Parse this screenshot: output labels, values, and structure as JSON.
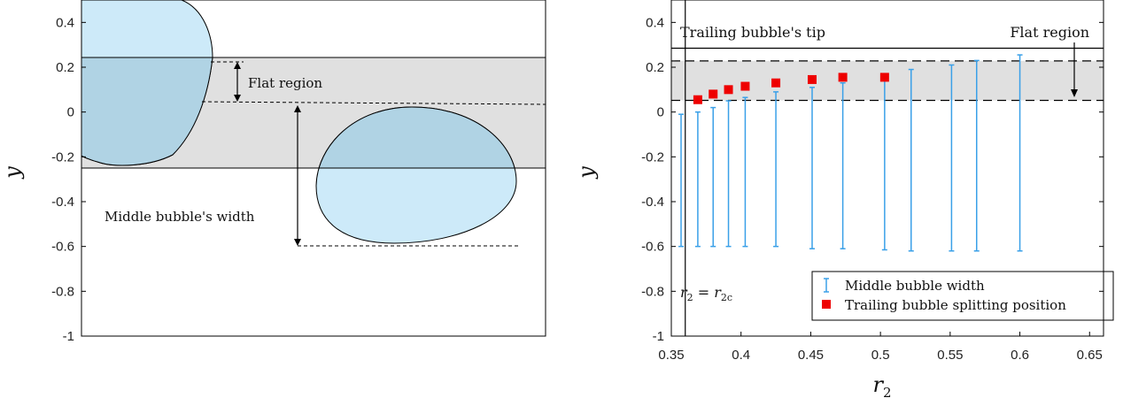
{
  "chart_data": [
    {
      "type": "diagram",
      "ylabel": "y",
      "ylim": [
        -1,
        0.5
      ],
      "yticks": [
        0.4,
        0.2,
        0,
        -0.2,
        -0.4,
        -0.6,
        -0.8,
        -1
      ],
      "ytick_labels": [
        "0.4",
        "0.2",
        "0",
        "-0.2",
        "-0.4",
        "-0.6",
        "-0.8",
        "-1"
      ],
      "flat_band": [
        -0.25,
        0.25
      ],
      "annotations": {
        "flat_region": "Flat region",
        "middle_width": "Middle bubble's width"
      },
      "colors": {
        "bubble_fill": "#cdeaf9",
        "band_fill": "#e0e0e0",
        "overlap_fill": "#b0d3e4"
      }
    },
    {
      "type": "scatter",
      "xlabel": "r2",
      "ylabel": "y",
      "xlim": [
        0.35,
        0.66
      ],
      "ylim": [
        -1,
        0.5
      ],
      "xticks": [
        0.35,
        0.4,
        0.45,
        0.5,
        0.55,
        0.6,
        0.65
      ],
      "xtick_labels": [
        "0.35",
        "0.4",
        "0.45",
        "0.5",
        "0.55",
        "0.6",
        "0.65"
      ],
      "yticks": [
        0.4,
        0.2,
        0,
        -0.2,
        -0.4,
        -0.6,
        -0.8,
        -1
      ],
      "ytick_labels": [
        "0.4",
        "0.2",
        "0",
        "-0.2",
        "-0.4",
        "-0.6",
        "-0.8",
        "-1"
      ],
      "critical_r2": 0.36,
      "critical_label": "r2 = r2c",
      "tip_y": 0.285,
      "tip_label": "Trailing bubble's tip",
      "flat_band": [
        0.052,
        0.228
      ],
      "flat_label": "Flat region",
      "series": [
        {
          "name": "Middle bubble width",
          "color": "#3aa0e8",
          "x": [
            0.357,
            0.369,
            0.38,
            0.391,
            0.403,
            0.425,
            0.451,
            0.473,
            0.503,
            0.522,
            0.551,
            0.569,
            0.6
          ],
          "low": [
            -0.6,
            -0.6,
            -0.6,
            -0.6,
            -0.6,
            -0.6,
            -0.61,
            -0.61,
            -0.615,
            -0.62,
            -0.62,
            -0.62,
            -0.62
          ],
          "high": [
            -0.01,
            0.0,
            0.02,
            0.05,
            0.065,
            0.09,
            0.11,
            0.13,
            0.15,
            0.19,
            0.21,
            0.23,
            0.255
          ]
        },
        {
          "name": "Trailing bubble splitting position",
          "color": "#ee0000",
          "x": [
            0.369,
            0.38,
            0.391,
            0.403,
            0.425,
            0.451,
            0.473,
            0.503
          ],
          "y": [
            0.055,
            0.08,
            0.1,
            0.115,
            0.13,
            0.145,
            0.155,
            0.155
          ]
        }
      ]
    }
  ]
}
